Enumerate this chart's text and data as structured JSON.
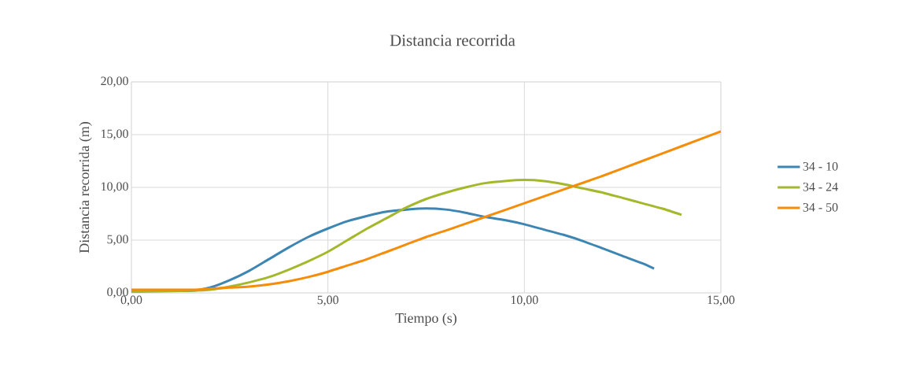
{
  "chart_data": {
    "type": "line",
    "title": "Distancia recorrida",
    "xlabel": "Tiempo (s)",
    "ylabel": "Distancia recorrida (m)",
    "xlim": [
      0,
      15
    ],
    "ylim": [
      0,
      20
    ],
    "xticks": [
      {
        "value": 0,
        "label": "0,00"
      },
      {
        "value": 5,
        "label": "5,00"
      },
      {
        "value": 10,
        "label": "10,00"
      },
      {
        "value": 15,
        "label": "15,00"
      }
    ],
    "yticks": [
      {
        "value": 0,
        "label": "0,00"
      },
      {
        "value": 5,
        "label": "5,00"
      },
      {
        "value": 10,
        "label": "10,00"
      },
      {
        "value": 15,
        "label": "15,00"
      },
      {
        "value": 20,
        "label": "20,00"
      }
    ],
    "grid": true,
    "legend": "right",
    "marker": "none",
    "line_style": "solid",
    "series": [
      {
        "name": "34 - 10",
        "color": "#3d86b3",
        "x": [
          0,
          1.5,
          2,
          2.5,
          3,
          3.5,
          4,
          4.5,
          5,
          5.5,
          6,
          6.5,
          7,
          7.5,
          8,
          8.5,
          9,
          9.5,
          10,
          10.5,
          11,
          11.5,
          12,
          12.5,
          13,
          13.3
        ],
        "values": [
          0.2,
          0.2,
          0.5,
          1.2,
          2.1,
          3.2,
          4.3,
          5.3,
          6.1,
          6.8,
          7.3,
          7.7,
          7.9,
          8.0,
          7.9,
          7.6,
          7.2,
          6.9,
          6.5,
          6.0,
          5.5,
          4.9,
          4.2,
          3.5,
          2.8,
          2.3
        ]
      },
      {
        "name": "34 - 24",
        "color": "#a5b72b",
        "x": [
          0,
          1.5,
          2,
          2.5,
          3,
          3.5,
          4,
          4.5,
          5,
          5.5,
          6,
          6.5,
          7,
          7.5,
          8,
          8.5,
          9,
          9.5,
          10,
          10.5,
          11,
          11.5,
          12,
          12.5,
          13,
          13.5,
          14
        ],
        "values": [
          0.1,
          0.2,
          0.3,
          0.6,
          1.0,
          1.5,
          2.2,
          3.0,
          3.9,
          5.0,
          6.1,
          7.1,
          8.1,
          8.9,
          9.5,
          10.0,
          10.4,
          10.6,
          10.7,
          10.6,
          10.3,
          9.9,
          9.5,
          9.0,
          8.5,
          8.0,
          7.4
        ]
      },
      {
        "name": "34 - 50",
        "color": "#f58c0a",
        "x": [
          0,
          1.5,
          2,
          2.5,
          3,
          3.5,
          4,
          4.5,
          5,
          5.5,
          6,
          6.5,
          7,
          7.5,
          8,
          9,
          10,
          11,
          12,
          13,
          14,
          15
        ],
        "values": [
          0.3,
          0.3,
          0.4,
          0.5,
          0.6,
          0.8,
          1.1,
          1.5,
          2.0,
          2.6,
          3.2,
          3.9,
          4.6,
          5.3,
          5.9,
          7.2,
          8.5,
          9.8,
          11.1,
          12.5,
          13.9,
          15.3
        ]
      }
    ]
  }
}
